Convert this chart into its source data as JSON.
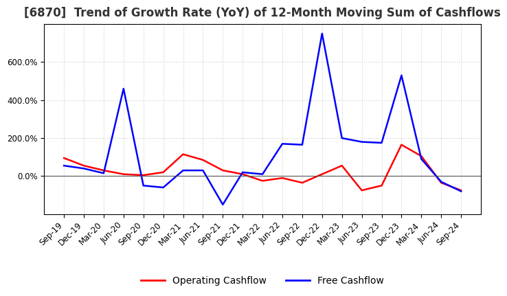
{
  "title": "[6870]  Trend of Growth Rate (YoY) of 12-Month Moving Sum of Cashflows",
  "legend": [
    "Operating Cashflow",
    "Free Cashflow"
  ],
  "legend_colors": [
    "#ff0000",
    "#0000ff"
  ],
  "x_labels": [
    "Sep-19",
    "Dec-19",
    "Mar-20",
    "Jun-20",
    "Sep-20",
    "Dec-20",
    "Mar-21",
    "Jun-21",
    "Sep-21",
    "Dec-21",
    "Mar-22",
    "Jun-22",
    "Sep-22",
    "Dec-22",
    "Mar-23",
    "Jun-23",
    "Sep-23",
    "Dec-23",
    "Mar-24",
    "Jun-24",
    "Sep-24"
  ],
  "operating_cashflow": [
    95,
    55,
    30,
    10,
    5,
    20,
    115,
    85,
    30,
    10,
    -25,
    -10,
    -35,
    10,
    55,
    -75,
    -50,
    165,
    105,
    -35,
    -75
  ],
  "free_cashflow": [
    55,
    40,
    15,
    460,
    -50,
    -60,
    30,
    30,
    -150,
    20,
    10,
    170,
    165,
    750,
    200,
    180,
    175,
    530,
    90,
    -30,
    -80
  ],
  "ylim_min": -200,
  "ylim_max": 800,
  "ytick_values": [
    0,
    200,
    400,
    600
  ],
  "ytick_labels": [
    "0.0%",
    "200.0%",
    "400.0%",
    "600.0%"
  ],
  "background_color": "#ffffff",
  "grid_color": "#cccccc",
  "grid_style": ":",
  "title_fontsize": 12,
  "tick_fontsize": 8.5
}
